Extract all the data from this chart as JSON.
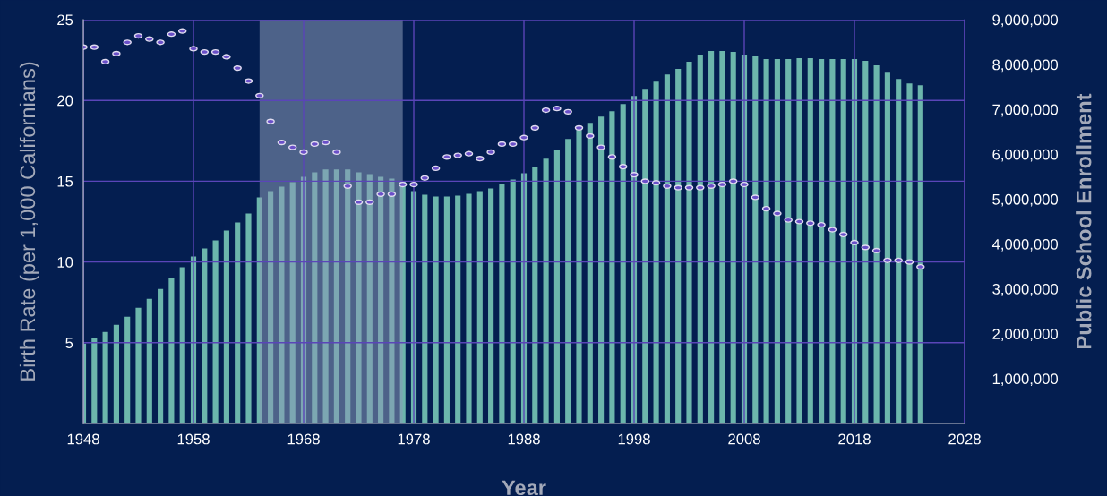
{
  "chart_data": {
    "type": "bar",
    "xlabel": "Year",
    "ylabel": "Birth Rate (per 1,000 Californians)",
    "y2label": "Public School Enrollment",
    "x": [
      1948,
      1949,
      1950,
      1951,
      1952,
      1953,
      1954,
      1955,
      1956,
      1957,
      1958,
      1959,
      1960,
      1961,
      1962,
      1963,
      1964,
      1965,
      1966,
      1967,
      1968,
      1969,
      1970,
      1971,
      1972,
      1973,
      1974,
      1975,
      1976,
      1977,
      1978,
      1979,
      1980,
      1981,
      1982,
      1983,
      1984,
      1985,
      1986,
      1987,
      1988,
      1989,
      1990,
      1991,
      1992,
      1993,
      1994,
      1995,
      1996,
      1997,
      1998,
      1999,
      2000,
      2001,
      2002,
      2003,
      2004,
      2005,
      2006,
      2007,
      2008,
      2009,
      2010,
      2011,
      2012,
      2013,
      2014,
      2015,
      2016,
      2017,
      2018,
      2019,
      2020,
      2021,
      2022,
      2023,
      2024
    ],
    "series": [
      {
        "axis": "y2",
        "color": "#6cb6ac",
        "values": [
          1780000,
          1900000,
          2040000,
          2200000,
          2380000,
          2580000,
          2780000,
          3000000,
          3240000,
          3480000,
          3720000,
          3900000,
          4080000,
          4300000,
          4480000,
          4680000,
          5040000,
          5180000,
          5280000,
          5380000,
          5500000,
          5600000,
          5660000,
          5660000,
          5660000,
          5600000,
          5560000,
          5500000,
          5460000,
          5400000,
          5180000,
          5100000,
          5060000,
          5060000,
          5080000,
          5120000,
          5180000,
          5240000,
          5340000,
          5440000,
          5580000,
          5720000,
          5900000,
          6100000,
          6340000,
          6540000,
          6700000,
          6840000,
          6960000,
          7120000,
          7300000,
          7460000,
          7620000,
          7780000,
          7900000,
          8060000,
          8220000,
          8300000,
          8300000,
          8280000,
          8220000,
          8180000,
          8120000,
          8120000,
          8120000,
          8140000,
          8140000,
          8120000,
          8120000,
          8120000,
          8120000,
          8080000,
          7980000,
          7840000,
          7680000,
          7580000,
          7540000
        ]
      },
      {
        "type": "scatter",
        "axis": "y",
        "color": "#6a4fc8",
        "marker": "circle",
        "values": [
          23.3,
          23.3,
          22.4,
          22.9,
          23.6,
          24.0,
          23.8,
          23.6,
          24.1,
          24.3,
          23.2,
          23.0,
          23.0,
          22.7,
          22.0,
          21.2,
          20.3,
          18.7,
          17.4,
          17.1,
          16.8,
          17.3,
          17.4,
          16.8,
          14.7,
          13.7,
          13.7,
          14.2,
          14.2,
          14.8,
          14.8,
          15.2,
          15.8,
          16.5,
          16.6,
          16.7,
          16.4,
          16.8,
          17.3,
          17.3,
          17.7,
          18.3,
          19.4,
          19.5,
          19.3,
          18.3,
          17.8,
          17.1,
          16.5,
          15.9,
          15.4,
          15.0,
          14.9,
          14.7,
          14.6,
          14.6,
          14.6,
          14.7,
          14.8,
          15.0,
          14.8,
          14.0,
          13.3,
          13.0,
          12.6,
          12.5,
          12.4,
          12.3,
          12.0,
          11.7,
          11.2,
          10.9,
          10.7,
          10.1,
          10.1,
          10.0,
          9.7
        ]
      }
    ],
    "xlim": [
      1948,
      2028
    ],
    "xticks": [
      1948,
      1958,
      1968,
      1978,
      1988,
      1998,
      2008,
      2018,
      2028
    ],
    "ylim": [
      0,
      25
    ],
    "yticks": [
      5,
      10,
      15,
      20,
      25
    ],
    "y2lim": [
      0,
      9000000
    ],
    "y2ticks": [
      {
        "value": 1000000,
        "label": "1,000,000"
      },
      {
        "value": 2000000,
        "label": "2,000,000"
      },
      {
        "value": 3000000,
        "label": "3,000,000"
      },
      {
        "value": 4000000,
        "label": "4,000,000"
      },
      {
        "value": 5000000,
        "label": "5,000,000"
      },
      {
        "value": 6000000,
        "label": "6,000,000"
      },
      {
        "value": 7000000,
        "label": "7,000,000"
      },
      {
        "value": 8000000,
        "label": "8,000,000"
      },
      {
        "value": 9000000,
        "label": "9,000,000"
      }
    ],
    "bands": [
      {
        "axis": "x",
        "from": 1964,
        "to": 1977,
        "color": "#8a9ab8"
      }
    ],
    "grid": true,
    "legend": false
  }
}
